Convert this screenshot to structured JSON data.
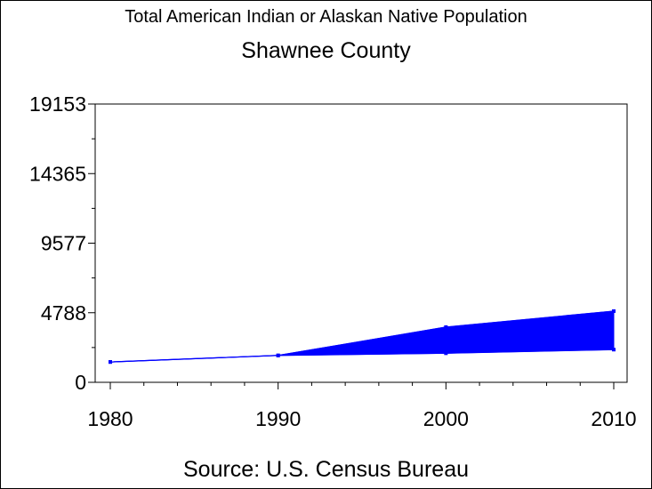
{
  "title": "Total American Indian or Alaskan Native Population",
  "subtitle": "Shawnee County",
  "source": "Source: U.S. Census Bureau",
  "colors": {
    "series": "#0000ff",
    "axis": "#000000",
    "background": "#ffffff"
  },
  "chart_data": {
    "type": "area",
    "title": "Total American Indian or Alaskan Native Population",
    "subtitle": "Shawnee County",
    "xlabel": "",
    "ylabel": "",
    "x": [
      1980,
      1990,
      2000,
      2010
    ],
    "xticks": [
      "1980",
      "1990",
      "2000",
      "2010"
    ],
    "yticks": [
      "0",
      "4788",
      "9577",
      "14365",
      "19153"
    ],
    "ylim": [
      0,
      19153
    ],
    "series": [
      {
        "values": [
          1400,
          1850,
          3800,
          4900
        ]
      },
      {
        "values": [
          1400,
          1850,
          2000,
          2250
        ]
      }
    ],
    "grid": false
  }
}
